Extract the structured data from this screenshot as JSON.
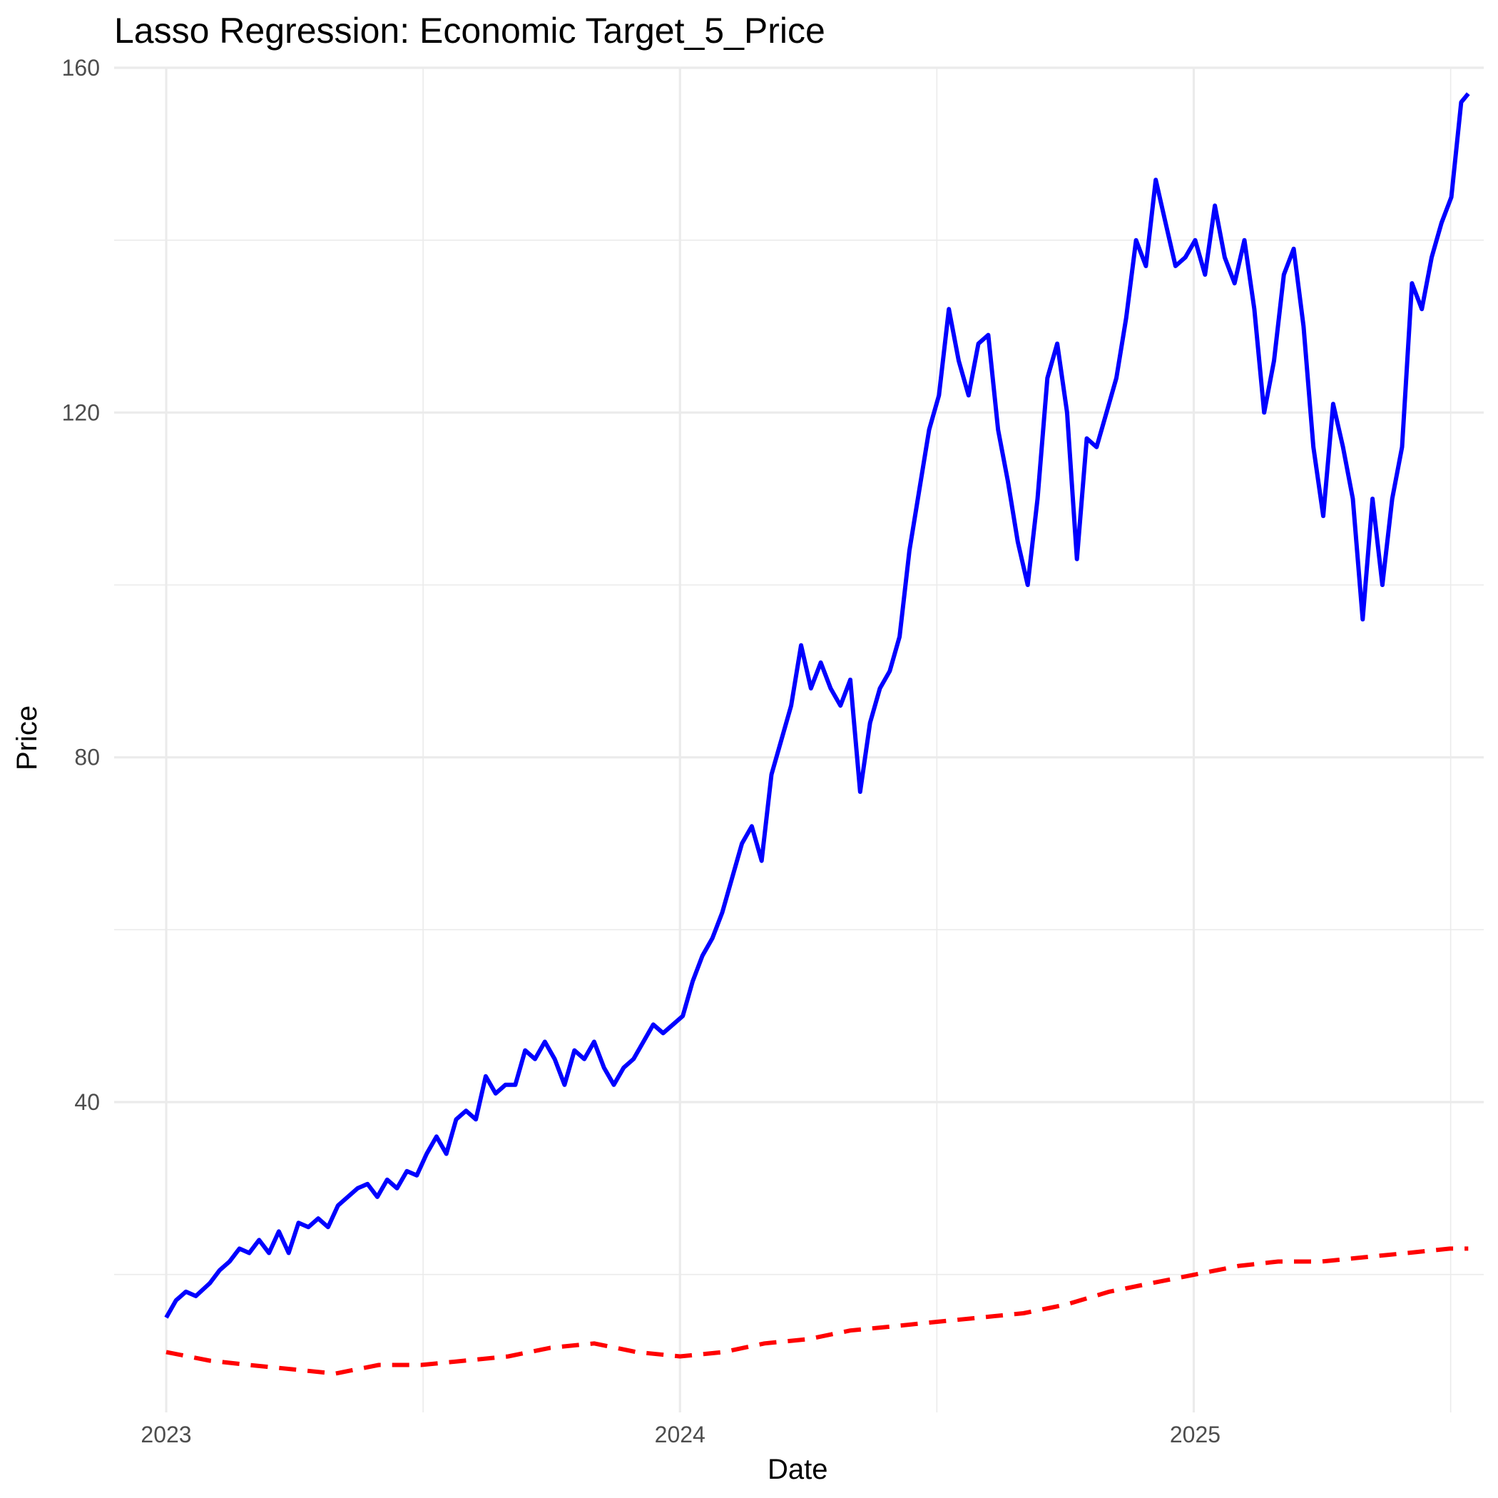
{
  "chart_data": {
    "type": "line",
    "title": "Lasso Regression: Economic Target_5_Price",
    "xlabel": "Date",
    "ylabel": "Price",
    "xlim": [
      "2022-11-25",
      "2025-07-25"
    ],
    "ylim": [
      4,
      160
    ],
    "x_ticks": [
      "2023",
      "2024",
      "2025"
    ],
    "x_tick_dates": [
      "2023-01-01",
      "2024-01-01",
      "2025-01-01"
    ],
    "y_ticks": [
      40,
      80,
      120,
      160
    ],
    "grid": true,
    "legend": "none",
    "series": [
      {
        "color": "#0000ff",
        "style": "solid",
        "points": [
          [
            "2023-01-01",
            15
          ],
          [
            "2023-01-08",
            17
          ],
          [
            "2023-01-15",
            18
          ],
          [
            "2023-01-22",
            17.5
          ],
          [
            "2023-02-01",
            19
          ],
          [
            "2023-02-08",
            20.5
          ],
          [
            "2023-02-15",
            21.5
          ],
          [
            "2023-02-22",
            23
          ],
          [
            "2023-03-01",
            22.5
          ],
          [
            "2023-03-08",
            24
          ],
          [
            "2023-03-15",
            22.5
          ],
          [
            "2023-03-22",
            25
          ],
          [
            "2023-03-29",
            22.5
          ],
          [
            "2023-04-05",
            26
          ],
          [
            "2023-04-12",
            25.5
          ],
          [
            "2023-04-19",
            26.5
          ],
          [
            "2023-04-26",
            25.5
          ],
          [
            "2023-05-03",
            28
          ],
          [
            "2023-05-10",
            29
          ],
          [
            "2023-05-17",
            30
          ],
          [
            "2023-05-24",
            30.5
          ],
          [
            "2023-05-31",
            29
          ],
          [
            "2023-06-07",
            31
          ],
          [
            "2023-06-14",
            30
          ],
          [
            "2023-06-21",
            32
          ],
          [
            "2023-06-28",
            31.5
          ],
          [
            "2023-07-05",
            34
          ],
          [
            "2023-07-12",
            36
          ],
          [
            "2023-07-19",
            34
          ],
          [
            "2023-07-26",
            38
          ],
          [
            "2023-08-02",
            39
          ],
          [
            "2023-08-09",
            38
          ],
          [
            "2023-08-16",
            43
          ],
          [
            "2023-08-23",
            41
          ],
          [
            "2023-08-30",
            42
          ],
          [
            "2023-09-06",
            42
          ],
          [
            "2023-09-13",
            46
          ],
          [
            "2023-09-20",
            45
          ],
          [
            "2023-09-27",
            47
          ],
          [
            "2023-10-04",
            45
          ],
          [
            "2023-10-11",
            42
          ],
          [
            "2023-10-18",
            46
          ],
          [
            "2023-10-25",
            45
          ],
          [
            "2023-11-01",
            47
          ],
          [
            "2023-11-08",
            44
          ],
          [
            "2023-11-15",
            42
          ],
          [
            "2023-11-22",
            44
          ],
          [
            "2023-11-29",
            45
          ],
          [
            "2023-12-06",
            47
          ],
          [
            "2023-12-13",
            49
          ],
          [
            "2023-12-20",
            48
          ],
          [
            "2023-12-27",
            49
          ],
          [
            "2024-01-03",
            50
          ],
          [
            "2024-01-10",
            54
          ],
          [
            "2024-01-17",
            57
          ],
          [
            "2024-01-24",
            59
          ],
          [
            "2024-01-31",
            62
          ],
          [
            "2024-02-07",
            66
          ],
          [
            "2024-02-14",
            70
          ],
          [
            "2024-02-21",
            72
          ],
          [
            "2024-02-28",
            68
          ],
          [
            "2024-03-06",
            78
          ],
          [
            "2024-03-13",
            82
          ],
          [
            "2024-03-20",
            86
          ],
          [
            "2024-03-27",
            93
          ],
          [
            "2024-04-03",
            88
          ],
          [
            "2024-04-10",
            91
          ],
          [
            "2024-04-17",
            88
          ],
          [
            "2024-04-24",
            86
          ],
          [
            "2024-05-01",
            89
          ],
          [
            "2024-05-08",
            76
          ],
          [
            "2024-05-15",
            84
          ],
          [
            "2024-05-22",
            88
          ],
          [
            "2024-05-29",
            90
          ],
          [
            "2024-06-05",
            94
          ],
          [
            "2024-06-12",
            104
          ],
          [
            "2024-06-19",
            111
          ],
          [
            "2024-06-26",
            118
          ],
          [
            "2024-07-03",
            122
          ],
          [
            "2024-07-10",
            132
          ],
          [
            "2024-07-17",
            126
          ],
          [
            "2024-07-24",
            122
          ],
          [
            "2024-07-31",
            128
          ],
          [
            "2024-08-07",
            129
          ],
          [
            "2024-08-14",
            118
          ],
          [
            "2024-08-21",
            112
          ],
          [
            "2024-08-28",
            105
          ],
          [
            "2024-09-04",
            100
          ],
          [
            "2024-09-11",
            110
          ],
          [
            "2024-09-18",
            124
          ],
          [
            "2024-09-25",
            128
          ],
          [
            "2024-10-02",
            120
          ],
          [
            "2024-10-09",
            103
          ],
          [
            "2024-10-16",
            117
          ],
          [
            "2024-10-23",
            116
          ],
          [
            "2024-10-30",
            120
          ],
          [
            "2024-11-06",
            124
          ],
          [
            "2024-11-13",
            131
          ],
          [
            "2024-11-20",
            140
          ],
          [
            "2024-11-27",
            137
          ],
          [
            "2024-12-04",
            147
          ],
          [
            "2024-12-11",
            142
          ],
          [
            "2024-12-18",
            137
          ],
          [
            "2024-12-25",
            138
          ],
          [
            "2025-01-01",
            140
          ],
          [
            "2025-01-08",
            136
          ],
          [
            "2025-01-15",
            144
          ],
          [
            "2025-01-22",
            138
          ],
          [
            "2025-01-29",
            135
          ],
          [
            "2025-02-05",
            140
          ],
          [
            "2025-02-12",
            132
          ],
          [
            "2025-02-19",
            120
          ],
          [
            "2025-02-26",
            126
          ],
          [
            "2025-03-05",
            136
          ],
          [
            "2025-03-12",
            139
          ],
          [
            "2025-03-19",
            130
          ],
          [
            "2025-03-26",
            116
          ],
          [
            "2025-04-02",
            108
          ],
          [
            "2025-04-09",
            121
          ],
          [
            "2025-04-16",
            116
          ],
          [
            "2025-04-23",
            110
          ],
          [
            "2025-04-30",
            96
          ],
          [
            "2025-05-07",
            110
          ],
          [
            "2025-05-14",
            100
          ],
          [
            "2025-05-21",
            110
          ],
          [
            "2025-05-28",
            116
          ],
          [
            "2025-06-04",
            135
          ],
          [
            "2025-06-11",
            132
          ],
          [
            "2025-06-18",
            138
          ],
          [
            "2025-06-25",
            142
          ],
          [
            "2025-07-02",
            145
          ],
          [
            "2025-07-09",
            156
          ],
          [
            "2025-07-14",
            157
          ]
        ]
      },
      {
        "color": "#ff0000",
        "style": "dashed",
        "points": [
          [
            "2023-01-01",
            11
          ],
          [
            "2023-02-01",
            10
          ],
          [
            "2023-03-01",
            9.5
          ],
          [
            "2023-04-01",
            9
          ],
          [
            "2023-05-01",
            8.5
          ],
          [
            "2023-06-01",
            9.5
          ],
          [
            "2023-07-01",
            9.5
          ],
          [
            "2023-08-01",
            10
          ],
          [
            "2023-09-01",
            10.5
          ],
          [
            "2023-10-01",
            11.5
          ],
          [
            "2023-11-01",
            12
          ],
          [
            "2023-12-01",
            11
          ],
          [
            "2024-01-01",
            10.5
          ],
          [
            "2024-02-01",
            11
          ],
          [
            "2024-03-01",
            12
          ],
          [
            "2024-04-01",
            12.5
          ],
          [
            "2024-05-01",
            13.5
          ],
          [
            "2024-06-01",
            14
          ],
          [
            "2024-07-01",
            14.5
          ],
          [
            "2024-08-01",
            15
          ],
          [
            "2024-09-01",
            15.5
          ],
          [
            "2024-10-01",
            16.5
          ],
          [
            "2024-11-01",
            18
          ],
          [
            "2024-12-01",
            19
          ],
          [
            "2025-01-01",
            20
          ],
          [
            "2025-02-01",
            21
          ],
          [
            "2025-03-01",
            21.5
          ],
          [
            "2025-04-01",
            21.5
          ],
          [
            "2025-05-01",
            22
          ],
          [
            "2025-06-01",
            22.5
          ],
          [
            "2025-07-01",
            23
          ],
          [
            "2025-07-14",
            23
          ]
        ]
      }
    ]
  }
}
